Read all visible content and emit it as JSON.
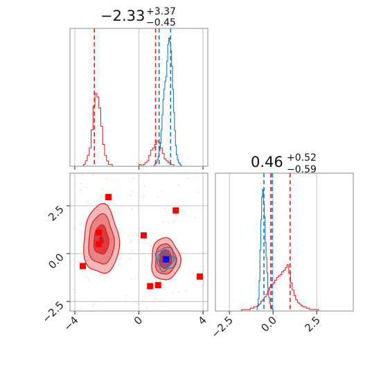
{
  "chart_data": {
    "type": "corner",
    "colors": {
      "red": "#d62728",
      "blue": "#1f77b4",
      "marker_red": "#ff0000",
      "marker_blue": "#0000ff",
      "grid": "#b0b0b0",
      "frame": "#888888"
    },
    "grid": true,
    "parameters": [
      {
        "title_median": "−2.33",
        "title_plus": "+3.37",
        "title_minus": "−0.45",
        "range": [
          -4.3,
          4.3
        ],
        "ticks": [
          -4,
          0,
          4
        ],
        "tick_labels": [
          "−4",
          "0",
          "4"
        ],
        "red_quantiles": [
          -2.78,
          1.04
        ],
        "blue_quantiles": [
          1.26,
          1.98
        ],
        "blue_hist": {
          "bin_start": 0.9,
          "bin_width": 0.06,
          "counts": [
            0,
            1,
            2,
            3,
            5,
            8,
            12,
            18,
            28,
            40,
            52,
            60,
            66,
            70,
            82,
            95,
            100,
            97,
            90,
            78,
            60,
            42,
            28,
            16,
            9,
            5,
            3,
            2,
            1,
            0
          ]
        },
        "red_hist": {
          "bin_start": -4.3,
          "bin_width": 0.12,
          "counts": [
            0,
            0,
            0,
            0,
            0,
            0,
            0,
            1,
            3,
            6,
            10,
            20,
            33,
            40,
            38,
            32,
            22,
            12,
            6,
            3,
            1,
            1,
            0,
            0,
            0,
            0,
            0,
            0,
            0,
            0,
            0,
            0,
            0,
            0,
            0,
            0,
            1,
            0,
            1,
            2,
            3,
            6,
            9,
            10,
            12,
            14,
            13,
            10,
            7,
            4,
            3,
            2,
            1,
            1,
            0,
            0,
            0,
            0,
            0,
            0,
            0,
            0,
            0,
            0,
            0,
            0,
            0,
            0,
            0,
            0,
            0,
            0
          ]
        }
      },
      {
        "title_median": "0.46",
        "title_plus": "+0.52",
        "title_minus": "−0.59",
        "range": [
          -3.3,
          4.6
        ],
        "ticks": [
          -2.5,
          0.0,
          2.5
        ],
        "tick_labels": [
          "−2.5",
          "0.0",
          "2.5"
        ],
        "red_quantiles": [
          -0.13,
          0.98
        ],
        "blue_quantiles": [
          -0.52,
          -0.05
        ],
        "blue_hist": {
          "bin_start": -0.95,
          "bin_width": 0.05,
          "counts": [
            1,
            3,
            8,
            20,
            40,
            60,
            75,
            80,
            70,
            62,
            45,
            35,
            25,
            15,
            9,
            5,
            3,
            2,
            1,
            0
          ]
        },
        "red_hist": {
          "bin_start": -3.3,
          "bin_width": 0.1,
          "counts": [
            0,
            0,
            0,
            0,
            0,
            0,
            0,
            0,
            0,
            0,
            0,
            0,
            0,
            0,
            0,
            1,
            1,
            1,
            1,
            1,
            2,
            2,
            3,
            3,
            4,
            5,
            7,
            8,
            10,
            12,
            15,
            17,
            19,
            20,
            22,
            24,
            25,
            26,
            28,
            29,
            31,
            33,
            27,
            20,
            15,
            11,
            8,
            6,
            5,
            4,
            3,
            3,
            2,
            2,
            1,
            1,
            1,
            1,
            1,
            0,
            0,
            0,
            0,
            0,
            0,
            0,
            0,
            0,
            0,
            0,
            0,
            0,
            0,
            0,
            0,
            0,
            0,
            0,
            0
          ]
        }
      }
    ],
    "scatter_ylim": [
      -3.0,
      4.2
    ],
    "red_markers": [
      {
        "x": -1.9,
        "y": 2.95
      },
      {
        "x": 2.3,
        "y": 2.25
      },
      {
        "x": 0.3,
        "y": 0.95
      },
      {
        "x": -2.5,
        "y": 1.1
      },
      {
        "x": -2.5,
        "y": 0.5
      },
      {
        "x": -3.5,
        "y": -0.65
      },
      {
        "x": 3.8,
        "y": -1.2
      },
      {
        "x": 0.7,
        "y": -1.7
      },
      {
        "x": 1.2,
        "y": -1.65
      },
      {
        "x": 1.65,
        "y": -0.28
      }
    ],
    "blue_marker": {
      "x": 1.7,
      "y": -0.3
    },
    "red_modes": [
      {
        "cx": -2.35,
        "cy": 0.7,
        "sx": 0.55,
        "sy": 0.9,
        "levels": [
          1.0,
          0.72,
          0.42,
          0.12
        ]
      },
      {
        "cx": 1.65,
        "cy": -0.3,
        "sx": 0.45,
        "sy": 0.55,
        "levels": [
          1.0,
          0.72,
          0.42,
          0.12
        ]
      }
    ],
    "blue_mode": {
      "cx": 1.68,
      "cy": -0.28,
      "sx": 0.3,
      "sy": 0.3
    }
  }
}
